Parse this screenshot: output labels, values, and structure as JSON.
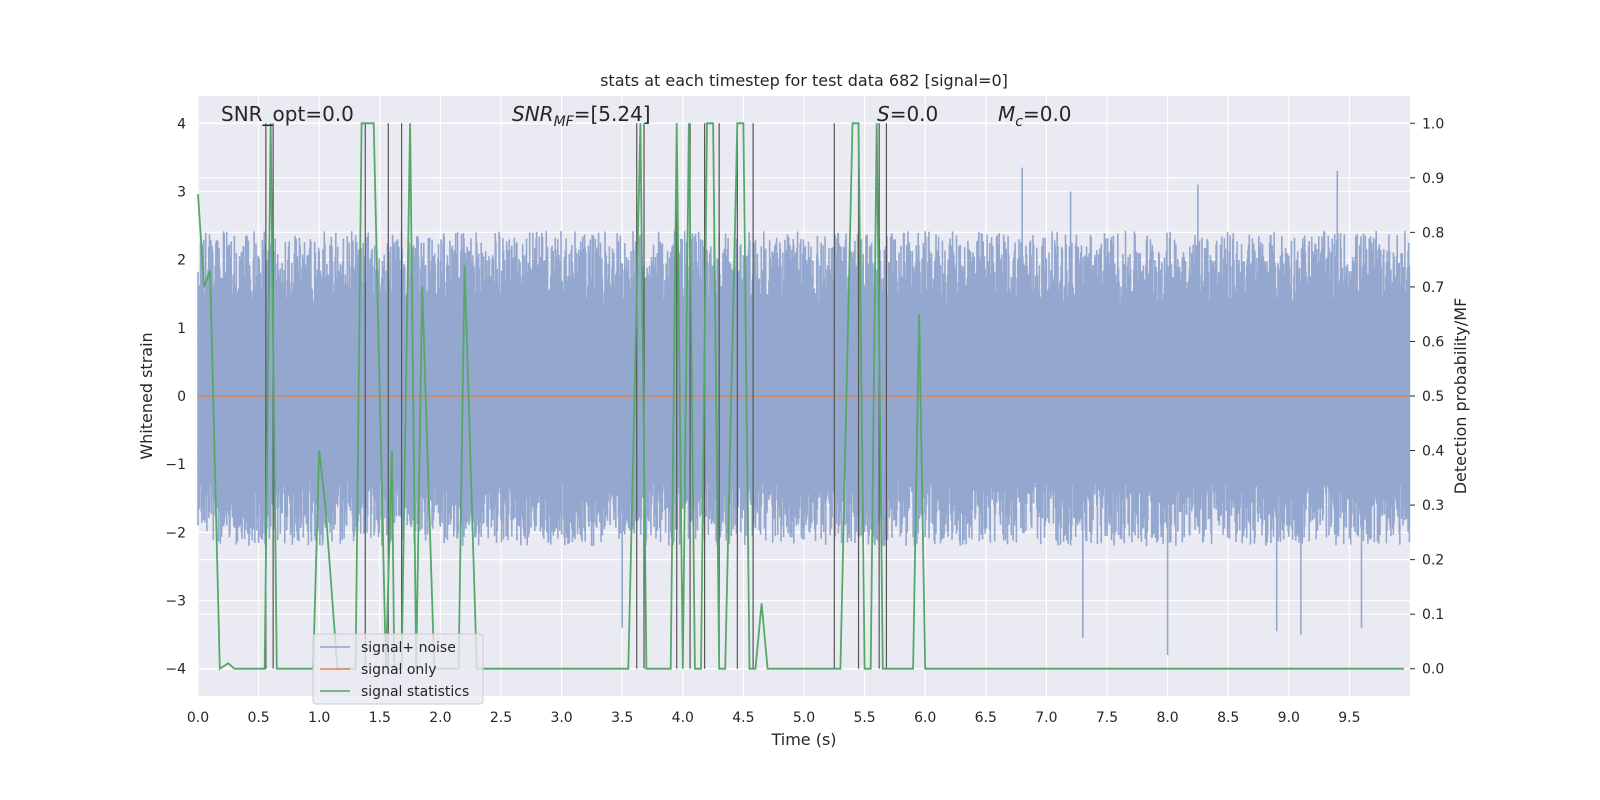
{
  "chart_data": {
    "type": "line",
    "title": "stats at each timestep for test data 682 [signal=0]",
    "xlabel": "Time (s)",
    "ylabel_left": "Whitened strain",
    "ylabel_right": "Detection probability/MF",
    "xlim": [
      0.0,
      10.0
    ],
    "ylim_left": [
      -4.4,
      4.4
    ],
    "ylim_right": [
      -0.05,
      1.05
    ],
    "x_ticks": [
      "0.0",
      "0.5",
      "1.0",
      "1.5",
      "2.0",
      "2.5",
      "3.0",
      "3.5",
      "4.0",
      "4.5",
      "5.0",
      "5.5",
      "6.0",
      "6.5",
      "7.0",
      "7.5",
      "8.0",
      "8.5",
      "9.0",
      "9.5"
    ],
    "y_ticks_left": [
      "−4",
      "−3",
      "−2",
      "−1",
      "0",
      "1",
      "2",
      "3",
      "4"
    ],
    "y_ticks_right": [
      "0.0",
      "0.1",
      "0.2",
      "0.3",
      "0.4",
      "0.5",
      "0.6",
      "0.7",
      "0.8",
      "0.9",
      "1.0"
    ],
    "grid": true,
    "legend_position": "lower-left",
    "annotations": [
      {
        "text": "SNR_opt=0.0",
        "x": 0.2
      },
      {
        "text": "SNR",
        "sub": "MF",
        "after": "=[5.24]",
        "x": 2.6,
        "italic": true
      },
      {
        "text": "S",
        "after": "=0.0",
        "x": 5.6,
        "italic": true
      },
      {
        "text": "M",
        "sub": "c",
        "after": "=0.0",
        "x": 6.6,
        "italic": true
      }
    ],
    "series": [
      {
        "name": "signal+ noise",
        "color": "#8fa3cc",
        "axis": "left",
        "description_envelope": {
          "typical_high": 2.2,
          "typical_low": -2.0,
          "peak_high": 3.4,
          "peak_low": -3.6
        },
        "peak_points": [
          {
            "x": 6.8,
            "y": 3.35
          },
          {
            "x": 7.2,
            "y": 3.0
          },
          {
            "x": 7.3,
            "y": -3.55
          },
          {
            "x": 8.0,
            "y": -3.8
          },
          {
            "x": 8.25,
            "y": 3.1
          },
          {
            "x": 8.9,
            "y": -3.45
          },
          {
            "x": 9.1,
            "y": -3.5
          },
          {
            "x": 9.4,
            "y": 3.3
          },
          {
            "x": 9.6,
            "y": -3.4
          },
          {
            "x": 3.5,
            "y": -3.4
          }
        ]
      },
      {
        "name": "signal only",
        "color": "#dd8452",
        "axis": "left",
        "x": [
          0.0,
          10.0
        ],
        "values": [
          0.0,
          0.0
        ]
      },
      {
        "name": "signal statistics",
        "color": "#55a868",
        "axis": "right",
        "x": [
          0.0,
          0.05,
          0.1,
          0.18,
          0.25,
          0.3,
          0.55,
          0.6,
          0.65,
          0.7,
          0.95,
          1.0,
          1.05,
          1.15,
          1.3,
          1.35,
          1.45,
          1.55,
          1.6,
          1.62,
          1.68,
          1.75,
          1.8,
          1.85,
          1.95,
          2.0,
          2.1,
          2.15,
          2.2,
          2.3,
          3.55,
          3.6,
          3.65,
          3.7,
          3.8,
          3.9,
          3.95,
          4.0,
          4.05,
          4.1,
          4.15,
          4.2,
          4.25,
          4.3,
          4.35,
          4.45,
          4.5,
          4.55,
          4.6,
          4.65,
          4.7,
          4.75,
          4.8,
          4.85,
          4.9,
          5.25,
          5.3,
          5.4,
          5.45,
          5.5,
          5.55,
          5.6,
          5.65,
          5.7,
          5.75,
          5.8,
          5.9,
          5.95,
          6.0,
          6.05,
          6.1,
          6.2,
          9.95
        ],
        "values": [
          0.87,
          0.7,
          0.73,
          0.0,
          0.01,
          0.0,
          0.0,
          1.0,
          0.0,
          0.0,
          0.0,
          0.4,
          0.3,
          0.0,
          0.0,
          1.0,
          1.0,
          0.0,
          0.4,
          0.0,
          0.0,
          1.0,
          0.0,
          0.7,
          0.0,
          0.0,
          0.0,
          0.0,
          0.74,
          0.0,
          0.0,
          0.48,
          1.0,
          0.0,
          0.0,
          0.0,
          1.0,
          0.0,
          1.0,
          0.0,
          0.0,
          1.0,
          1.0,
          0.0,
          0.0,
          1.0,
          1.0,
          0.0,
          0.0,
          0.12,
          0.0,
          0.0,
          0.0,
          0.0,
          0.0,
          0.0,
          0.0,
          1.0,
          1.0,
          0.0,
          0.0,
          1.0,
          0.0,
          0.0,
          0.0,
          0.0,
          0.0,
          0.65,
          0.0,
          0.0,
          0.0,
          0.0,
          0.0
        ]
      }
    ],
    "vertical_markers": [
      0.56,
      0.62,
      1.38,
      1.57,
      1.68,
      3.62,
      3.68,
      3.95,
      4.06,
      4.18,
      4.3,
      4.45,
      4.58,
      5.25,
      5.45,
      5.62,
      5.68
    ]
  },
  "legend": {
    "items": [
      {
        "label": "signal+ noise",
        "color": "#8fa3cc"
      },
      {
        "label": "signal only",
        "color": "#dd8452"
      },
      {
        "label": "signal statistics",
        "color": "#55a868"
      }
    ]
  },
  "colors": {
    "background": "#eaeaf2",
    "grid": "#ffffff",
    "marker": "#555555"
  }
}
